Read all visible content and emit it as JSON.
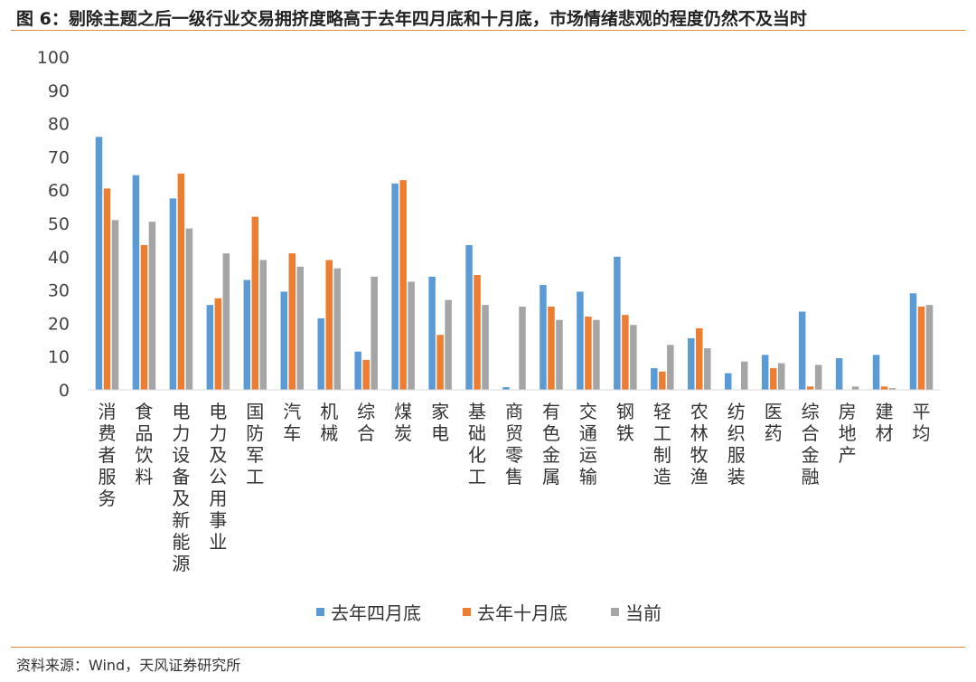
{
  "figure": {
    "title": "图 6：剔除主题之后一级行业交易拥挤度略高于去年四月底和十月底，市场情绪悲观的程度仍然不及当时",
    "source": "资料来源：Wind，天风证券研究所"
  },
  "colors": {
    "series": [
      "#5b9bd5",
      "#ed7d31",
      "#a5a5a5"
    ],
    "axis": "#d9d9d9",
    "rule": "#e8883a"
  },
  "chart_data": {
    "type": "bar",
    "ylim": [
      0,
      100
    ],
    "yticks": [
      0,
      10,
      20,
      30,
      40,
      50,
      60,
      70,
      80,
      90,
      100
    ],
    "grid": false,
    "legend_position": "bottom",
    "categories": [
      "消费者服务",
      "食品饮料",
      "电力设备及新能源",
      "电力及公用事业",
      "国防军工",
      "汽车",
      "机械",
      "综合",
      "煤炭",
      "家电",
      "基础化工",
      "商贸零售",
      "有色金属",
      "交通运输",
      "钢铁",
      "轻工制造",
      "农林牧渔",
      "纺织服装",
      "医药",
      "综合金融",
      "房地产",
      "建材",
      "平均"
    ],
    "series": [
      {
        "name": "去年四月底",
        "values": [
          76,
          64.5,
          57.5,
          25.5,
          33,
          29.5,
          21.5,
          11.5,
          62,
          34,
          43.5,
          0.8,
          31.5,
          29.5,
          40,
          6.5,
          15.5,
          5,
          10.5,
          23.5,
          9.5,
          10.5,
          29
        ]
      },
      {
        "name": "去年十月底",
        "values": [
          60.5,
          43.5,
          65,
          27.5,
          52,
          41,
          39,
          9,
          63,
          16.5,
          34.5,
          0,
          25,
          22,
          22.5,
          5.5,
          18.5,
          0,
          6.5,
          1,
          0,
          1,
          25
        ]
      },
      {
        "name": "当前",
        "values": [
          51,
          50.5,
          48.5,
          41,
          39,
          37,
          36.5,
          34,
          32.5,
          27,
          25.5,
          25,
          21,
          21,
          19.5,
          13.5,
          12.5,
          8.5,
          8,
          7.5,
          1,
          0.5,
          25.5
        ]
      }
    ]
  }
}
